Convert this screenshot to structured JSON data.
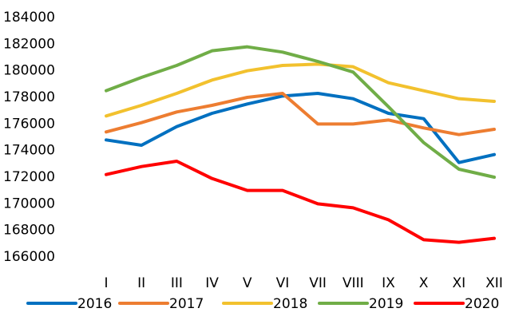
{
  "chart_data": {
    "type": "line",
    "categories": [
      "I",
      "II",
      "III",
      "IV",
      "V",
      "VI",
      "VII",
      "VIII",
      "IX",
      "X",
      "XI",
      "XII"
    ],
    "series": [
      {
        "name": "2016",
        "color": "#0070c0",
        "values": [
          174800,
          174400,
          175800,
          176800,
          177500,
          178100,
          178300,
          177900,
          176800,
          176400,
          173100,
          173700
        ]
      },
      {
        "name": "2017",
        "color": "#ed7d31",
        "values": [
          175400,
          176100,
          176900,
          177400,
          178000,
          178300,
          176000,
          176000,
          176300,
          175700,
          175200,
          175600
        ]
      },
      {
        "name": "2018",
        "color": "#f2c12e",
        "values": [
          176600,
          177400,
          178300,
          179300,
          180000,
          180400,
          180500,
          180300,
          179100,
          178500,
          177900,
          177700
        ]
      },
      {
        "name": "2019",
        "color": "#70ad47",
        "values": [
          178500,
          179500,
          180400,
          181500,
          181800,
          181400,
          180700,
          179900,
          177300,
          174600,
          172600,
          172000
        ]
      },
      {
        "name": "2020",
        "color": "#ff0000",
        "values": [
          172200,
          172800,
          173200,
          171900,
          171000,
          171000,
          170000,
          169700,
          168800,
          167300,
          167100,
          167400
        ]
      }
    ],
    "ylim": [
      166000,
      184000
    ],
    "yticks": [
      166000,
      168000,
      170000,
      172000,
      174000,
      176000,
      178000,
      180000,
      182000,
      184000
    ],
    "grid": false,
    "legend": "bottom"
  }
}
